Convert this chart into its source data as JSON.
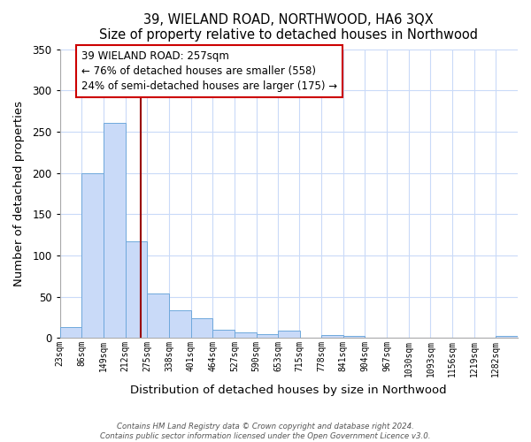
{
  "title": "39, WIELAND ROAD, NORTHWOOD, HA6 3QX",
  "subtitle": "Size of property relative to detached houses in Northwood",
  "xlabel": "Distribution of detached houses by size in Northwood",
  "ylabel": "Number of detached properties",
  "bar_labels": [
    "23sqm",
    "86sqm",
    "149sqm",
    "212sqm",
    "275sqm",
    "338sqm",
    "401sqm",
    "464sqm",
    "527sqm",
    "590sqm",
    "653sqm",
    "715sqm",
    "778sqm",
    "841sqm",
    "904sqm",
    "967sqm",
    "1030sqm",
    "1093sqm",
    "1156sqm",
    "1219sqm",
    "1282sqm"
  ],
  "bar_values": [
    13,
    200,
    261,
    117,
    54,
    33,
    24,
    10,
    7,
    5,
    9,
    0,
    3,
    2,
    0,
    0,
    0,
    0,
    0,
    0,
    2
  ],
  "bar_edges": [
    23,
    86,
    149,
    212,
    275,
    338,
    401,
    464,
    527,
    590,
    653,
    715,
    778,
    841,
    904,
    967,
    1030,
    1093,
    1156,
    1219,
    1282,
    1345
  ],
  "bar_color": "#c9daf8",
  "bar_edge_color": "#6fa8dc",
  "vline_x": 257,
  "vline_color": "#990000",
  "annotation_text": "39 WIELAND ROAD: 257sqm\n← 76% of detached houses are smaller (558)\n24% of semi-detached houses are larger (175) →",
  "annotation_box_color": "#ffffff",
  "annotation_border_color": "#cc0000",
  "ylim": [
    0,
    350
  ],
  "yticks": [
    0,
    50,
    100,
    150,
    200,
    250,
    300,
    350
  ],
  "bg_color": "#ffffff",
  "grid_color": "#c9daf8",
  "footer1": "Contains HM Land Registry data © Crown copyright and database right 2024.",
  "footer2": "Contains public sector information licensed under the Open Government Licence v3.0."
}
